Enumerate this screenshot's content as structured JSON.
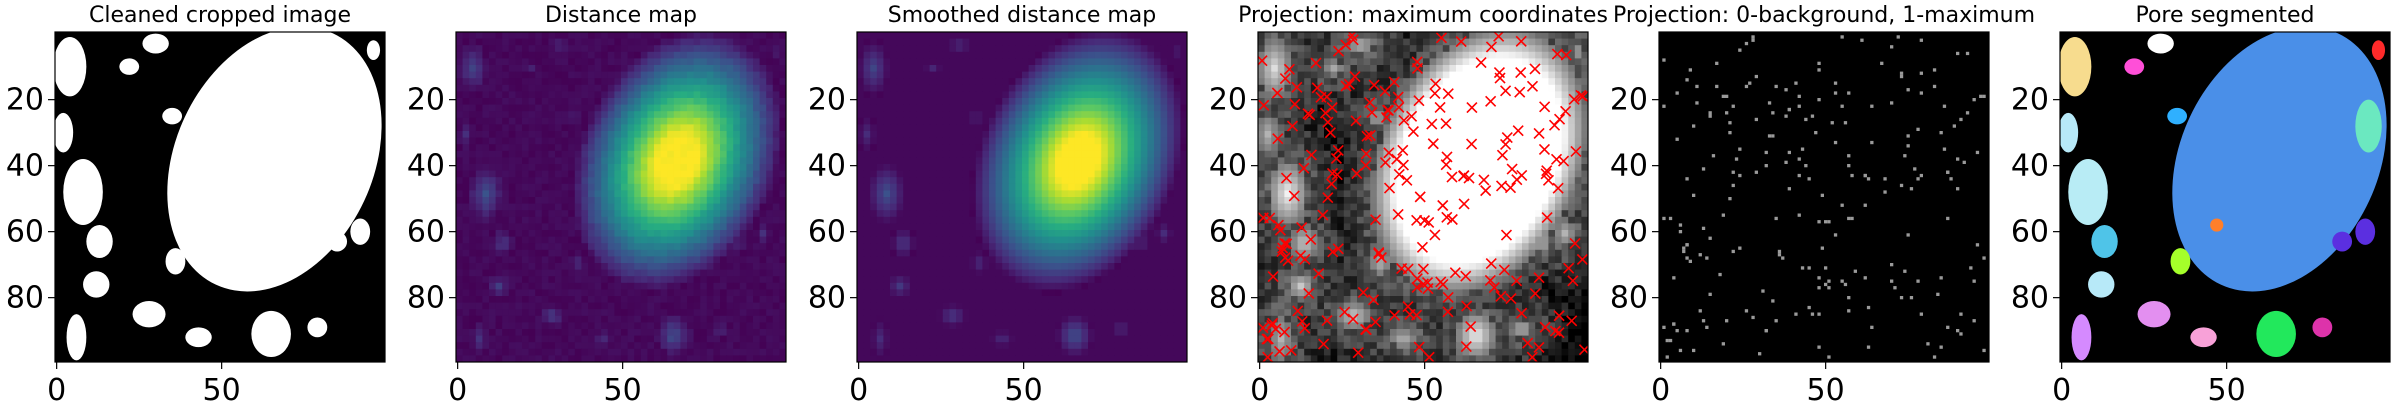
{
  "figure": {
    "panels": [
      {
        "title": "Cleaned cropped image",
        "kind": "binary"
      },
      {
        "title": "Distance map",
        "kind": "distance"
      },
      {
        "title": "Smoothed distance map",
        "kind": "smoothed"
      },
      {
        "title": "Projection: maximum coordinates",
        "kind": "projection"
      },
      {
        "title": "Projection: 0-background, 1-maximum",
        "kind": "markers"
      },
      {
        "title": "Pore segmented",
        "kind": "segmented"
      }
    ]
  },
  "chart_data": {
    "type": "heatmap",
    "grid_size": 100,
    "x_ticks": [
      "0",
      "50"
    ],
    "y_ticks": [
      "20",
      "40",
      "60",
      "80"
    ],
    "x_tick_values": [
      0,
      50
    ],
    "y_tick_values": [
      20,
      40,
      60,
      80
    ],
    "xlim": [
      0,
      99
    ],
    "ylim": [
      99,
      0
    ],
    "colormaps": {
      "binary": "gray",
      "distance": "viridis",
      "smoothed": "viridis",
      "projection": "gray",
      "markers": "gray",
      "segmented": "random-label"
    },
    "marker_color": "#ff0000",
    "marker_symbol": "x",
    "main_pore_color": "#4a8fe8",
    "background_color": "#000000"
  }
}
